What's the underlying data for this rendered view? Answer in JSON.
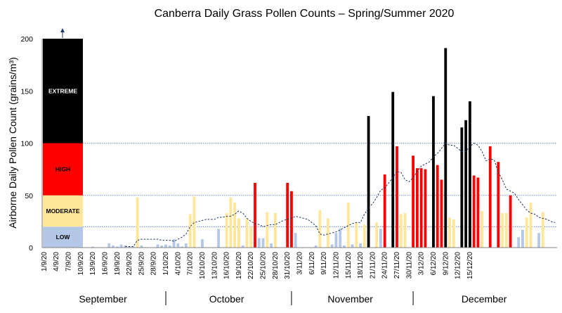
{
  "chart_data": {
    "type": "bar",
    "title": "Canberra Daily Grass Pollen Counts – Spring/Summer 2020",
    "ylabel": "Airborne Daily Pollen Count (grains/m³)",
    "xlabel": "",
    "ylim": [
      0,
      200
    ],
    "yticks": [
      0,
      50,
      100,
      150,
      200
    ],
    "grid": "dotted lines at band thresholds 20, 50, 100",
    "start_date": "1/9/20",
    "x_tick_labels": [
      "1/9/20",
      "4/9/20",
      "7/9/20",
      "10/9/20",
      "13/9/20",
      "16/9/20",
      "19/9/20",
      "22/9/20",
      "25/9/20",
      "28/9/20",
      "1/10/20",
      "4/10/20",
      "7/10/20",
      "10/10/20",
      "13/10/20",
      "16/10/20",
      "19/10/20",
      "22/10/20",
      "25/10/20",
      "28/10/20",
      "31/10/20",
      "3/11/20",
      "6/11/20",
      "9/11/20",
      "12/11/20",
      "15/11/20",
      "18/11/20",
      "21/11/20",
      "24/11/20",
      "27/11/20",
      "30/11/20",
      "3/12/20",
      "6/12/20",
      "9/12/20",
      "12/12/20",
      "15/12/20"
    ],
    "months": [
      "September",
      "October",
      "November",
      "December"
    ],
    "bands": [
      {
        "label": "LOW",
        "from": 0,
        "to": 20,
        "color": "#b4c7e7",
        "text_color": "#000000"
      },
      {
        "label": "MODERATE",
        "from": 20,
        "to": 50,
        "color": "#ffe699",
        "text_color": "#000000"
      },
      {
        "label": "HIGH",
        "from": 50,
        "to": 100,
        "color": "#ff0000",
        "text_color": "#000000"
      },
      {
        "label": "EXTREME",
        "from": 100,
        "to": 200,
        "color": "#000000",
        "text_color": "#ffffff"
      }
    ],
    "values": [
      0,
      0,
      0,
      0,
      0,
      0,
      0,
      0,
      1,
      0,
      0,
      0,
      1,
      0,
      0,
      0,
      4,
      2,
      1,
      3,
      2,
      1,
      1,
      48,
      2,
      0,
      0,
      0,
      3,
      2,
      3,
      2,
      8,
      4,
      1,
      4,
      32,
      49,
      0,
      8,
      0,
      0,
      0,
      18,
      0,
      33,
      48,
      43,
      28,
      2,
      28,
      20,
      62,
      9,
      9,
      34,
      4,
      33,
      0,
      0,
      62,
      54,
      14,
      0,
      0,
      0,
      0,
      2,
      36,
      0,
      28,
      3,
      14,
      18,
      2,
      43,
      3,
      24,
      4,
      22,
      126,
      0,
      24,
      18,
      70,
      0,
      149,
      97,
      32,
      33,
      0,
      88,
      76,
      76,
      75,
      0,
      145,
      79,
      65,
      191,
      29,
      27,
      0,
      115,
      122,
      140,
      69,
      67,
      35,
      0,
      97,
      0,
      82,
      33,
      33,
      50,
      0,
      10,
      17,
      29,
      43,
      0,
      14,
      34,
      0,
      0,
      0
    ],
    "trend": [
      null,
      null,
      null,
      null,
      null,
      null,
      null,
      null,
      null,
      null,
      null,
      null,
      null,
      null,
      null,
      null,
      null,
      null,
      null,
      null,
      1,
      1,
      1,
      7,
      8,
      8,
      8,
      8,
      8,
      7,
      7,
      7,
      6,
      8,
      10,
      13,
      20,
      24,
      25,
      26,
      27,
      27,
      27,
      29,
      29,
      30,
      30,
      32,
      35,
      33,
      28,
      25,
      23,
      22,
      20,
      21,
      22,
      22,
      24,
      26,
      27,
      28,
      30,
      29,
      28,
      27,
      24,
      21,
      13,
      12,
      13,
      14,
      15,
      17,
      19,
      21,
      23,
      24,
      24,
      32,
      38,
      42,
      48,
      55,
      57,
      62,
      67,
      73,
      72,
      65,
      63,
      67,
      73,
      78,
      80,
      82,
      87,
      90,
      95,
      100,
      98,
      98,
      95,
      92,
      92,
      97,
      100,
      98,
      92,
      83,
      85,
      84,
      72,
      65,
      56,
      54,
      52,
      46,
      41,
      36,
      33,
      32,
      29,
      28,
      27,
      25,
      24
    ]
  }
}
